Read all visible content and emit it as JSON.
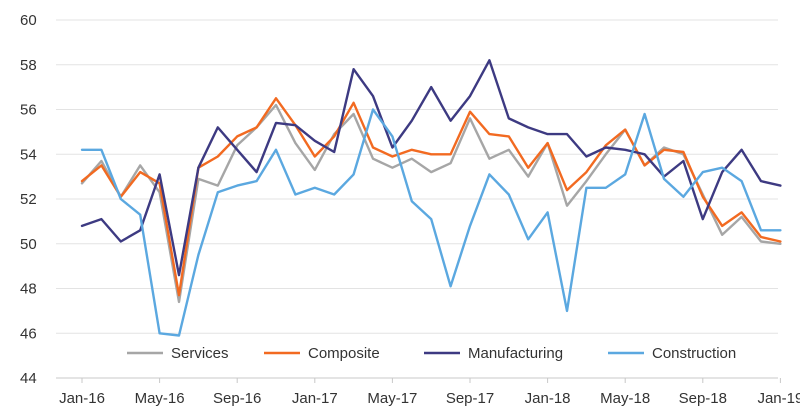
{
  "chart_data": {
    "type": "line",
    "title": "",
    "xlabel": "",
    "ylabel": "",
    "ylim": [
      44,
      60
    ],
    "yticks": [
      44,
      46,
      48,
      50,
      52,
      54,
      56,
      58,
      60
    ],
    "x": [
      "Jan-16",
      "Feb-16",
      "Mar-16",
      "Apr-16",
      "May-16",
      "Jun-16",
      "Jul-16",
      "Aug-16",
      "Sep-16",
      "Oct-16",
      "Nov-16",
      "Dec-16",
      "Jan-17",
      "Feb-17",
      "Mar-17",
      "Apr-17",
      "May-17",
      "Jun-17",
      "Jul-17",
      "Aug-17",
      "Sep-17",
      "Oct-17",
      "Nov-17",
      "Dec-17",
      "Jan-18",
      "Feb-18",
      "Mar-18",
      "Apr-18",
      "May-18",
      "Jun-18",
      "Jul-18",
      "Aug-18",
      "Sep-18",
      "Oct-18",
      "Nov-18",
      "Dec-18",
      "Jan-19"
    ],
    "xtick_labels": [
      "Jan-16",
      "May-16",
      "Sep-16",
      "Jan-17",
      "May-17",
      "Sep-17",
      "Jan-18",
      "May-18",
      "Sep-18",
      "Jan-19"
    ],
    "grid": true,
    "legend_position": "bottom",
    "series": [
      {
        "name": "Services",
        "color": "#a6a6a6",
        "values": [
          52.7,
          53.7,
          52.1,
          53.5,
          52.3,
          47.4,
          52.9,
          52.6,
          54.4,
          55.2,
          56.2,
          54.5,
          53.3,
          54.9,
          55.8,
          53.8,
          53.4,
          53.8,
          53.2,
          53.6,
          55.6,
          53.8,
          54.2,
          53.0,
          54.5,
          51.7,
          52.8,
          54.0,
          55.1,
          53.5,
          54.3,
          54.0,
          52.2,
          50.4,
          51.2,
          50.1,
          50.0
        ]
      },
      {
        "name": "Composite",
        "color": "#f26a21",
        "values": [
          52.8,
          53.5,
          52.1,
          53.2,
          52.7,
          47.7,
          53.4,
          53.9,
          54.8,
          55.2,
          56.5,
          55.3,
          53.9,
          54.8,
          56.3,
          54.3,
          53.9,
          54.2,
          54.0,
          54.0,
          55.9,
          54.9,
          54.8,
          53.4,
          54.5,
          52.4,
          53.2,
          54.4,
          55.1,
          53.5,
          54.2,
          54.1,
          52.1,
          50.8,
          51.4,
          50.3,
          50.1
        ]
      },
      {
        "name": "Manufacturing",
        "color": "#3d3a82",
        "values": [
          50.8,
          51.1,
          50.1,
          50.6,
          53.1,
          48.6,
          53.4,
          55.2,
          54.2,
          53.2,
          55.4,
          55.3,
          54.6,
          54.1,
          57.8,
          56.6,
          54.3,
          55.5,
          57.0,
          55.5,
          56.6,
          58.2,
          55.6,
          55.2,
          54.9,
          54.9,
          53.9,
          54.3,
          54.2,
          54.0,
          53.0,
          53.7,
          51.1,
          53.2,
          54.2,
          52.8,
          52.6
        ]
      },
      {
        "name": "Construction",
        "color": "#5ba8e0",
        "values": [
          54.2,
          54.2,
          52.0,
          51.3,
          46.0,
          45.9,
          49.5,
          52.3,
          52.6,
          52.8,
          54.2,
          52.2,
          52.5,
          52.2,
          53.1,
          56.0,
          54.8,
          51.9,
          51.1,
          48.1,
          50.8,
          53.1,
          52.2,
          50.2,
          51.4,
          47.0,
          52.5,
          52.5,
          53.1,
          55.8,
          52.9,
          52.1,
          53.2,
          53.4,
          52.8,
          50.6,
          50.6
        ]
      }
    ]
  }
}
